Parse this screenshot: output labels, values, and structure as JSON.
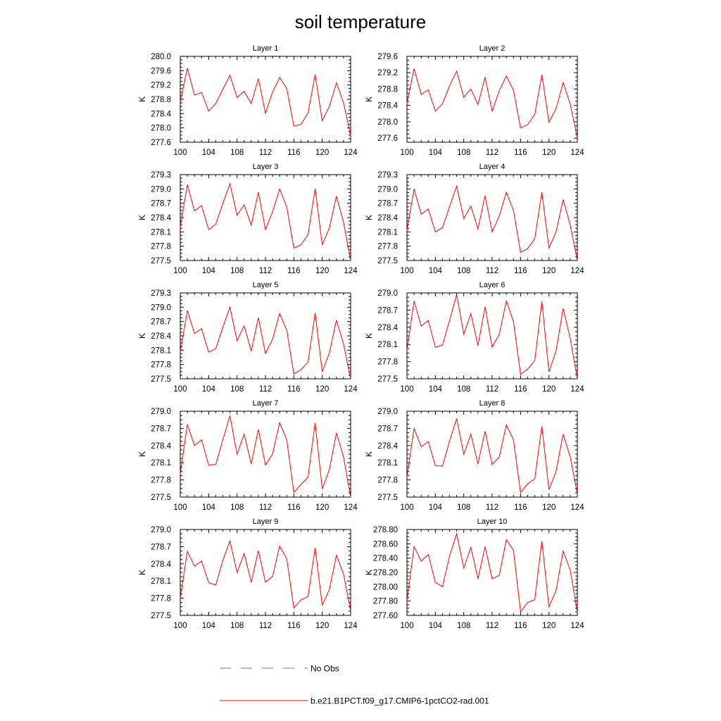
{
  "title": "soil temperature",
  "legend": {
    "obs_label": "No Obs",
    "model_label": "b.e21.B1PCT.f09_g17.CMIP6-1pctCO2-rad.001",
    "obs_color": "#6a6aff",
    "model_color": "#ff0000"
  },
  "chart_data": [
    {
      "type": "line",
      "title": "Layer 1",
      "ylabel": "K",
      "xlim": [
        100,
        124
      ],
      "xticks": [
        "100",
        "104",
        "108",
        "112",
        "116",
        "120",
        "124"
      ],
      "ylim": [
        277.6,
        280.0
      ],
      "yticks": [
        "277.6",
        "278.0",
        "278.4",
        "278.8",
        "279.2",
        "279.6",
        "280.0"
      ],
      "series": [
        {
          "color": "#ff0000",
          "x": [
            100,
            101,
            102,
            103,
            104,
            105,
            106,
            107,
            108,
            109,
            110,
            111,
            112,
            113,
            114,
            115,
            116,
            117,
            118,
            119,
            120,
            121,
            122,
            123,
            124
          ],
          "y": [
            278.72,
            279.67,
            278.92,
            278.99,
            278.47,
            278.68,
            279.08,
            279.47,
            278.85,
            279.02,
            278.68,
            279.38,
            278.41,
            279.0,
            279.41,
            279.1,
            278.05,
            278.1,
            278.42,
            279.49,
            278.2,
            278.6,
            279.26,
            278.7,
            277.78
          ]
        }
      ]
    },
    {
      "type": "line",
      "title": "Layer 2",
      "ylabel": "K",
      "xlim": [
        100,
        124
      ],
      "xticks": [
        "100",
        "104",
        "108",
        "112",
        "116",
        "120",
        "124"
      ],
      "ylim": [
        277.5,
        279.6
      ],
      "yticks": [
        "277.6",
        "278.0",
        "278.4",
        "278.8",
        "279.2",
        "279.6"
      ],
      "series": [
        {
          "color": "#ff0000",
          "x": [
            100,
            101,
            102,
            103,
            104,
            105,
            106,
            107,
            108,
            109,
            110,
            111,
            112,
            113,
            114,
            115,
            116,
            117,
            118,
            119,
            120,
            121,
            122,
            123,
            124
          ],
          "y": [
            278.45,
            279.3,
            278.67,
            278.78,
            278.26,
            278.44,
            278.88,
            279.24,
            278.6,
            278.8,
            278.42,
            279.09,
            278.26,
            278.76,
            279.12,
            278.77,
            277.85,
            277.93,
            278.18,
            279.15,
            277.99,
            278.32,
            278.96,
            278.43,
            277.6
          ]
        }
      ]
    },
    {
      "type": "line",
      "title": "Layer 3",
      "ylabel": "K",
      "xlim": [
        100,
        124
      ],
      "xticks": [
        "100",
        "104",
        "108",
        "112",
        "116",
        "120",
        "124"
      ],
      "ylim": [
        277.5,
        279.3
      ],
      "yticks": [
        "277.5",
        "277.8",
        "278.1",
        "278.4",
        "278.7",
        "279.0",
        "279.3"
      ],
      "series": [
        {
          "color": "#ff0000",
          "x": [
            100,
            101,
            102,
            103,
            104,
            105,
            106,
            107,
            108,
            109,
            110,
            111,
            112,
            113,
            114,
            115,
            116,
            117,
            118,
            119,
            120,
            121,
            122,
            123,
            124
          ],
          "y": [
            278.2,
            279.09,
            278.54,
            278.65,
            278.15,
            278.26,
            278.7,
            279.11,
            278.45,
            278.67,
            278.24,
            278.93,
            278.15,
            278.52,
            279.0,
            278.62,
            277.76,
            277.83,
            278.04,
            279.01,
            277.83,
            278.18,
            278.85,
            278.3,
            277.5
          ]
        }
      ]
    },
    {
      "type": "line",
      "title": "Layer 4",
      "ylabel": "K",
      "xlim": [
        100,
        124
      ],
      "xticks": [
        "100",
        "104",
        "108",
        "112",
        "116",
        "120",
        "124"
      ],
      "ylim": [
        277.5,
        279.3
      ],
      "yticks": [
        "277.5",
        "277.8",
        "278.1",
        "278.4",
        "278.7",
        "279.0",
        "279.3"
      ],
      "series": [
        {
          "color": "#ff0000",
          "x": [
            100,
            101,
            102,
            103,
            104,
            105,
            106,
            107,
            108,
            109,
            110,
            111,
            112,
            113,
            114,
            115,
            116,
            117,
            118,
            119,
            120,
            121,
            122,
            123,
            124
          ],
          "y": [
            278.13,
            279.0,
            278.47,
            278.58,
            278.1,
            278.19,
            278.63,
            279.06,
            278.38,
            278.64,
            278.16,
            278.86,
            278.1,
            278.43,
            278.93,
            278.55,
            277.67,
            277.75,
            277.96,
            278.93,
            277.76,
            278.1,
            278.78,
            278.24,
            277.5
          ]
        }
      ]
    },
    {
      "type": "line",
      "title": "Layer 5",
      "ylabel": "K",
      "xlim": [
        100,
        124
      ],
      "xticks": [
        "100",
        "104",
        "108",
        "112",
        "116",
        "120",
        "124"
      ],
      "ylim": [
        277.5,
        279.3
      ],
      "yticks": [
        "277.5",
        "277.8",
        "278.1",
        "278.4",
        "278.7",
        "279.0",
        "279.3"
      ],
      "series": [
        {
          "color": "#ff0000",
          "x": [
            100,
            101,
            102,
            103,
            104,
            105,
            106,
            107,
            108,
            109,
            110,
            111,
            112,
            113,
            114,
            115,
            116,
            117,
            118,
            119,
            120,
            121,
            122,
            123,
            124
          ],
          "y": [
            278.06,
            278.93,
            278.45,
            278.55,
            278.06,
            278.13,
            278.58,
            279.0,
            278.3,
            278.61,
            278.08,
            278.78,
            278.03,
            278.33,
            278.87,
            278.52,
            277.6,
            277.69,
            277.85,
            278.88,
            277.65,
            278.04,
            278.73,
            278.23,
            277.5
          ]
        }
      ]
    },
    {
      "type": "line",
      "title": "Layer 6",
      "ylabel": "K",
      "xlim": [
        100,
        124
      ],
      "xticks": [
        "100",
        "104",
        "108",
        "112",
        "116",
        "120",
        "124"
      ],
      "ylim": [
        277.5,
        279.0
      ],
      "yticks": [
        "277.5",
        "277.8",
        "278.1",
        "278.4",
        "278.7",
        "279.0"
      ],
      "series": [
        {
          "color": "#ff0000",
          "x": [
            100,
            101,
            102,
            103,
            104,
            105,
            106,
            107,
            108,
            109,
            110,
            111,
            112,
            113,
            114,
            115,
            116,
            117,
            118,
            119,
            120,
            121,
            122,
            123,
            124
          ],
          "y": [
            278.0,
            278.86,
            278.42,
            278.52,
            278.05,
            278.09,
            278.52,
            278.97,
            278.28,
            278.64,
            278.08,
            278.76,
            278.05,
            278.28,
            278.86,
            278.5,
            277.58,
            277.67,
            277.82,
            278.85,
            277.62,
            277.99,
            278.73,
            278.2,
            277.5
          ]
        }
      ]
    },
    {
      "type": "line",
      "title": "Layer 7",
      "ylabel": "K",
      "xlim": [
        100,
        124
      ],
      "xticks": [
        "100",
        "104",
        "108",
        "112",
        "116",
        "120",
        "124"
      ],
      "ylim": [
        277.5,
        279.0
      ],
      "yticks": [
        "277.5",
        "277.8",
        "278.1",
        "278.4",
        "278.7",
        "279.0"
      ],
      "series": [
        {
          "color": "#ff0000",
          "x": [
            100,
            101,
            102,
            103,
            104,
            105,
            106,
            107,
            108,
            109,
            110,
            111,
            112,
            113,
            114,
            115,
            116,
            117,
            118,
            119,
            120,
            121,
            122,
            123,
            124
          ],
          "y": [
            277.9,
            278.77,
            278.4,
            278.5,
            278.06,
            278.07,
            278.5,
            278.92,
            278.25,
            278.6,
            278.08,
            278.68,
            278.06,
            278.25,
            278.8,
            278.5,
            277.58,
            277.72,
            277.85,
            278.8,
            277.64,
            277.98,
            278.62,
            278.2,
            277.5
          ]
        }
      ]
    },
    {
      "type": "line",
      "title": "Layer 8",
      "ylabel": "K",
      "xlim": [
        100,
        124
      ],
      "xticks": [
        "100",
        "104",
        "108",
        "112",
        "116",
        "120",
        "124"
      ],
      "ylim": [
        277.5,
        279.0
      ],
      "yticks": [
        "277.5",
        "277.8",
        "278.1",
        "278.4",
        "278.7",
        "279.0"
      ],
      "series": [
        {
          "color": "#ff0000",
          "x": [
            100,
            101,
            102,
            103,
            104,
            105,
            106,
            107,
            108,
            109,
            110,
            111,
            112,
            113,
            114,
            115,
            116,
            117,
            118,
            119,
            120,
            121,
            122,
            123,
            124
          ],
          "y": [
            277.85,
            278.7,
            278.38,
            278.47,
            278.05,
            278.04,
            278.48,
            278.87,
            278.25,
            278.6,
            278.08,
            278.65,
            278.07,
            278.2,
            278.76,
            278.5,
            277.58,
            277.73,
            277.82,
            278.74,
            277.63,
            277.95,
            278.6,
            278.2,
            277.55
          ]
        }
      ]
    },
    {
      "type": "line",
      "title": "Layer 9",
      "ylabel": "K",
      "xlim": [
        100,
        124
      ],
      "xticks": [
        "100",
        "104",
        "108",
        "112",
        "116",
        "120",
        "124"
      ],
      "ylim": [
        277.5,
        279.0
      ],
      "yticks": [
        "277.5",
        "277.8",
        "278.1",
        "278.4",
        "278.7",
        "279.0"
      ],
      "series": [
        {
          "color": "#ff0000",
          "x": [
            100,
            101,
            102,
            103,
            104,
            105,
            106,
            107,
            108,
            109,
            110,
            111,
            112,
            113,
            114,
            115,
            116,
            117,
            118,
            119,
            120,
            121,
            122,
            123,
            124
          ],
          "y": [
            277.8,
            278.62,
            278.36,
            278.45,
            278.07,
            278.03,
            278.46,
            278.8,
            278.25,
            278.58,
            278.08,
            278.63,
            278.08,
            278.18,
            278.71,
            278.49,
            277.63,
            277.77,
            277.83,
            278.68,
            277.68,
            277.95,
            278.55,
            278.22,
            277.58
          ]
        }
      ]
    },
    {
      "type": "line",
      "title": "Layer 10",
      "ylabel": "K",
      "xlim": [
        100,
        124
      ],
      "xticks": [
        "100",
        "104",
        "108",
        "112",
        "116",
        "120",
        "124"
      ],
      "ylim": [
        277.6,
        278.8
      ],
      "yticks": [
        "277.60",
        "277.80",
        "278.00",
        "278.20",
        "278.40",
        "278.60",
        "278.80"
      ],
      "series": [
        {
          "color": "#ff0000",
          "x": [
            100,
            101,
            102,
            103,
            104,
            105,
            106,
            107,
            108,
            109,
            110,
            111,
            112,
            113,
            114,
            115,
            116,
            117,
            118,
            119,
            120,
            121,
            122,
            123,
            124
          ],
          "y": [
            277.8,
            278.56,
            278.36,
            278.45,
            278.06,
            278.0,
            278.43,
            278.74,
            278.26,
            278.55,
            278.11,
            278.56,
            278.11,
            278.16,
            278.66,
            278.51,
            277.65,
            277.78,
            277.82,
            278.64,
            277.72,
            277.95,
            278.5,
            278.23,
            277.64
          ]
        }
      ]
    }
  ]
}
